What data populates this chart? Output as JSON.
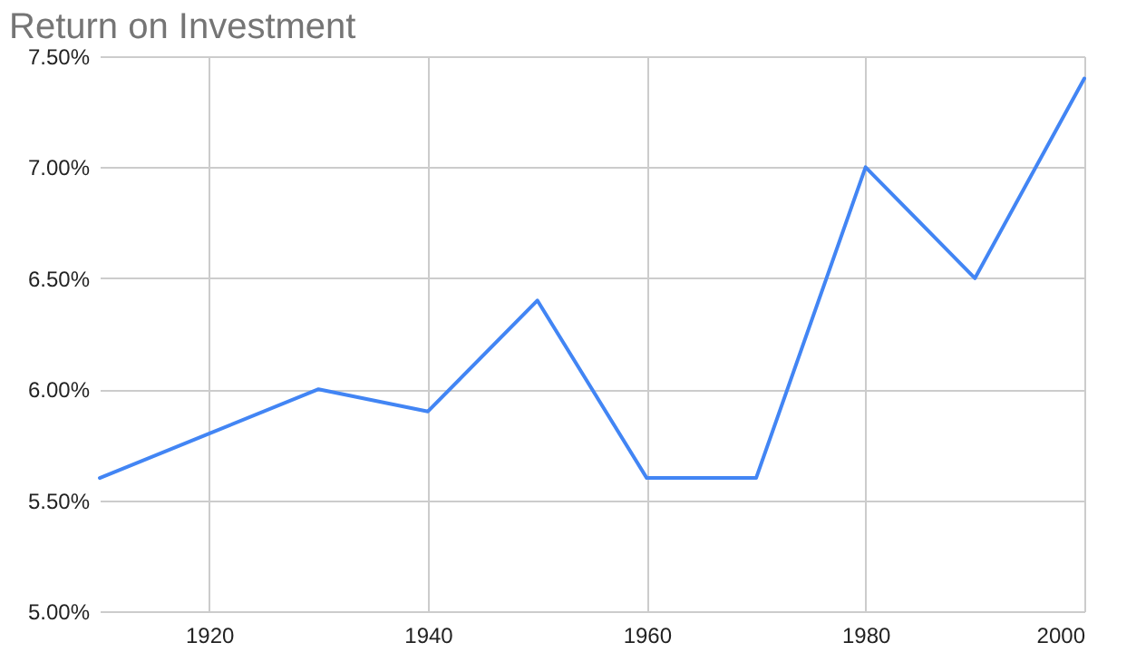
{
  "chart_data": {
    "type": "line",
    "title": "Return on Investment",
    "x": [
      1910,
      1920,
      1930,
      1940,
      1950,
      1960,
      1970,
      1980,
      1990,
      2000
    ],
    "series": [
      {
        "color": "#4285f4",
        "values": [
          5.6,
          5.8,
          6.0,
          5.9,
          6.4,
          5.6,
          5.6,
          7.0,
          6.5,
          7.4
        ]
      }
    ],
    "xlim": [
      1910,
      2000
    ],
    "xticks": [
      1920,
      1940,
      1960,
      1980,
      2000
    ],
    "ylim": [
      5,
      7.5
    ],
    "yticks": [
      {
        "value": 5,
        "label": "5.00%"
      },
      {
        "value": 5.5,
        "label": "5.50%"
      },
      {
        "value": 6,
        "label": "6.00%"
      },
      {
        "value": 6.5,
        "label": "6.50%"
      },
      {
        "value": 7,
        "label": "7.00%"
      },
      {
        "value": 7.5,
        "label": "7.50%"
      }
    ],
    "grid": true,
    "legend": false
  }
}
